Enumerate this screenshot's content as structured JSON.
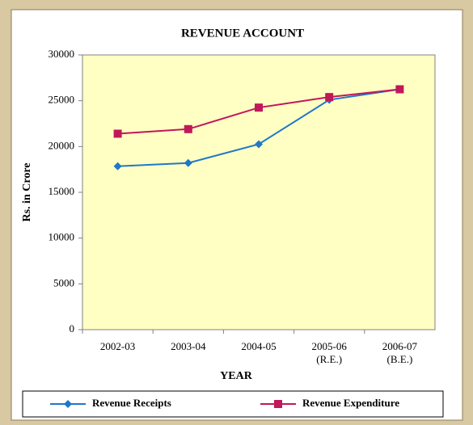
{
  "chart_data": {
    "type": "line",
    "title": "REVENUE ACCOUNT",
    "x_label": "YEAR",
    "y_label": "Rs. in Crore",
    "categories": [
      "2002-03",
      "2003-04",
      "2004-05",
      "2005-06 (R.E.)",
      "2006-07 (B.E.)"
    ],
    "series": [
      {
        "name": "Revenue Receipts",
        "color": "#1f78c8",
        "marker": "diamond",
        "values": [
          17850,
          18200,
          20250,
          25100,
          26250
        ]
      },
      {
        "name": "Revenue Expenditure",
        "color": "#c0185a",
        "marker": "square",
        "values": [
          21400,
          21900,
          24250,
          25400,
          26250
        ]
      }
    ],
    "ylim": [
      0,
      30000
    ],
    "yticks": [
      0,
      5000,
      10000,
      15000,
      20000,
      25000,
      30000
    ],
    "legend": "bottom"
  }
}
